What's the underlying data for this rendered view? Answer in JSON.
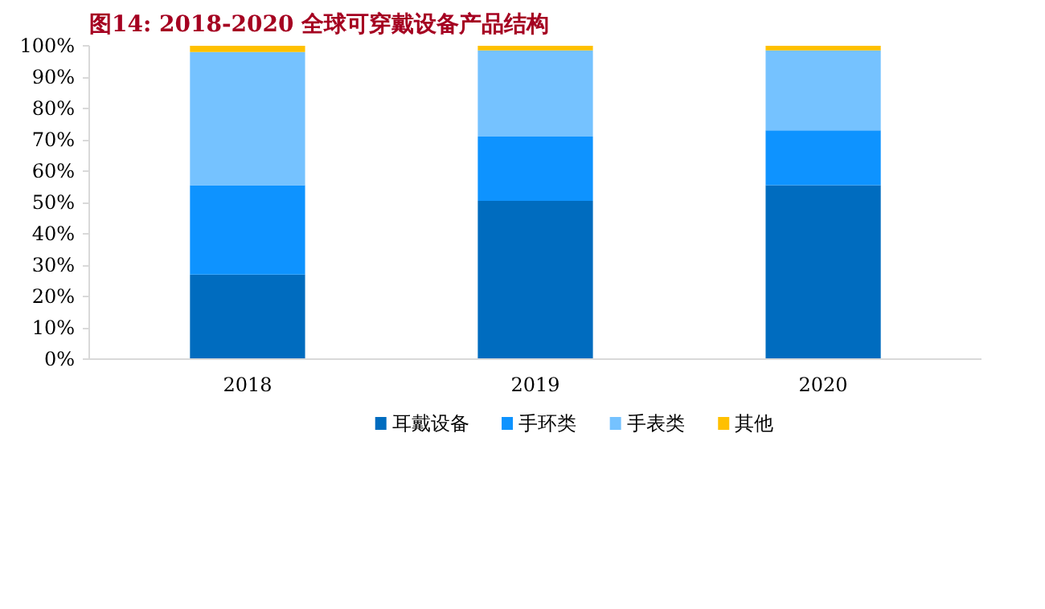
{
  "chart_data": {
    "type": "bar",
    "stacked": true,
    "title": "图14:    2018-2020 全球可穿戴设备产品结构",
    "categories": [
      "2018",
      "2019",
      "2020"
    ],
    "series": [
      {
        "name": "耳戴设备",
        "color": "#006cbf",
        "values": [
          27,
          50.5,
          55.5
        ]
      },
      {
        "name": "手环类",
        "color": "#0e93ff",
        "values": [
          28.5,
          20.5,
          17.5
        ]
      },
      {
        "name": "手表类",
        "color": "#75c2ff",
        "values": [
          42.5,
          27.5,
          25.5
        ]
      },
      {
        "name": "其他",
        "color": "#ffc000",
        "values": [
          2,
          1.5,
          1.5
        ]
      }
    ],
    "ylim": [
      0,
      100
    ],
    "yticks": [
      {
        "value": 0,
        "label": "0%"
      },
      {
        "value": 10,
        "label": "10%"
      },
      {
        "value": 20,
        "label": "20%"
      },
      {
        "value": 30,
        "label": "30%"
      },
      {
        "value": 40,
        "label": "40%"
      },
      {
        "value": 50,
        "label": "50%"
      },
      {
        "value": 60,
        "label": "60%"
      },
      {
        "value": 70,
        "label": "70%"
      },
      {
        "value": 80,
        "label": "80%"
      },
      {
        "value": 90,
        "label": "90%"
      },
      {
        "value": 100,
        "label": "100%"
      }
    ],
    "grid": false,
    "legend": "bottom"
  }
}
